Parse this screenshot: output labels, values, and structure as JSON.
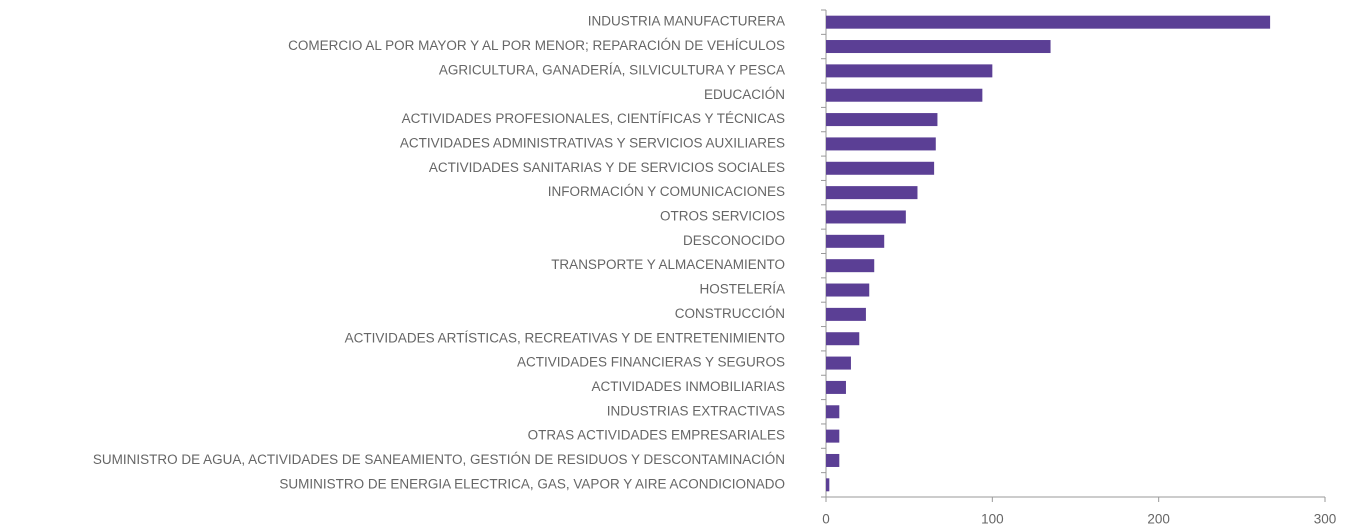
{
  "chart_data": {
    "type": "bar",
    "orientation": "horizontal",
    "categories": [
      "INDUSTRIA MANUFACTURERA",
      "COMERCIO AL POR MAYOR Y AL POR MENOR; REPARACIÓN DE VEHÍCULOS",
      "AGRICULTURA, GANADERÍA, SILVICULTURA Y PESCA",
      "EDUCACIÓN",
      "ACTIVIDADES PROFESIONALES, CIENTÍFICAS Y TÉCNICAS",
      "ACTIVIDADES ADMINISTRATIVAS Y SERVICIOS AUXILIARES",
      "ACTIVIDADES SANITARIAS Y DE SERVICIOS SOCIALES",
      "INFORMACIÓN Y COMUNICACIONES",
      "OTROS SERVICIOS",
      "DESCONOCIDO",
      "TRANSPORTE Y ALMACENAMIENTO",
      "HOSTELERÍA",
      "CONSTRUCCIÓN",
      "ACTIVIDADES ARTÍSTICAS, RECREATIVAS Y DE ENTRETENIMIENTO",
      "ACTIVIDADES FINANCIERAS Y SEGUROS",
      "ACTIVIDADES INMOBILIARIAS",
      "INDUSTRIAS EXTRACTIVAS",
      "OTRAS ACTIVIDADES EMPRESARIALES",
      "SUMINISTRO DE AGUA, ACTIVIDADES DE SANEAMIENTO, GESTIÓN DE RESIDUOS Y DESCONTAMINACIÓN",
      "SUMINISTRO DE ENERGIA ELECTRICA, GAS, VAPOR Y AIRE ACONDICIONADO"
    ],
    "values": [
      267,
      135,
      100,
      94,
      67,
      66,
      65,
      55,
      48,
      35,
      29,
      26,
      24,
      20,
      15,
      12,
      8,
      8,
      8,
      2
    ],
    "color": "#5b3f95",
    "xlim": [
      0,
      300
    ],
    "xticks": [
      0,
      100,
      200,
      300
    ]
  }
}
